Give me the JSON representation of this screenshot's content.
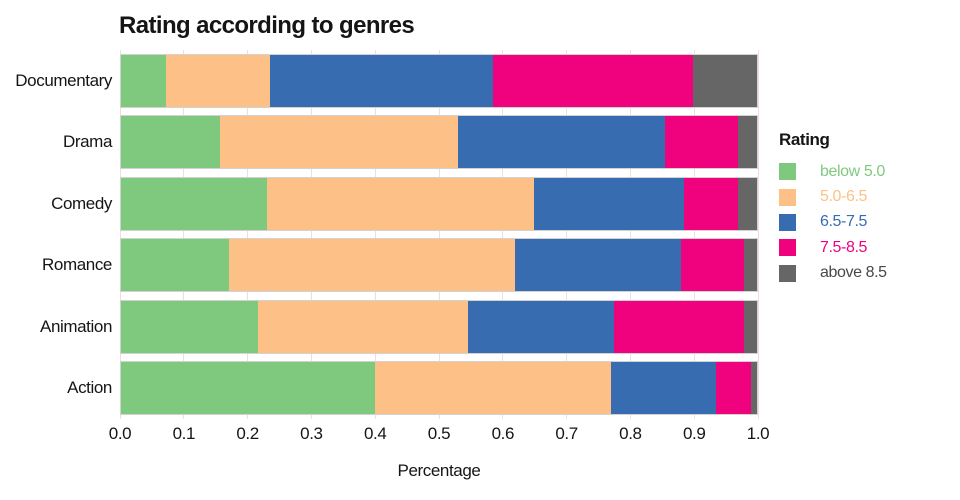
{
  "chart_data": {
    "type": "bar",
    "orientation": "horizontal",
    "stacked": true,
    "title": "Rating according to genres",
    "xlabel": "Percentage",
    "ylabel": "",
    "xlim": [
      0.0,
      1.0
    ],
    "xticks": [
      "0.0",
      "0.1",
      "0.2",
      "0.3",
      "0.4",
      "0.5",
      "0.6",
      "0.7",
      "0.8",
      "0.9",
      "1.0"
    ],
    "grid": "vertical-light-pink-at-0.1-steps",
    "categories": [
      "Documentary",
      "Drama",
      "Comedy",
      "Romance",
      "Animation",
      "Action"
    ],
    "series": [
      {
        "name": "below 5.0",
        "color": "#7fc97f",
        "text_color": "#7fc97f",
        "values": [
          0.07,
          0.155,
          0.23,
          0.17,
          0.215,
          0.4
        ]
      },
      {
        "name": "5.0-6.5",
        "color": "#fdc086",
        "text_color": "#fdc086",
        "values": [
          0.165,
          0.375,
          0.42,
          0.45,
          0.33,
          0.37
        ]
      },
      {
        "name": "6.5-7.5",
        "color": "#386cb0",
        "text_color": "#386cb0",
        "values": [
          0.35,
          0.325,
          0.235,
          0.26,
          0.23,
          0.165
        ]
      },
      {
        "name": "7.5-8.5",
        "color": "#f0027f",
        "text_color": "#f0027f",
        "values": [
          0.315,
          0.115,
          0.085,
          0.1,
          0.205,
          0.055
        ]
      },
      {
        "name": "above 8.5",
        "color": "#666666",
        "text_color": "#484848",
        "values": [
          0.1,
          0.03,
          0.03,
          0.02,
          0.02,
          0.01
        ]
      }
    ],
    "legend": {
      "title": "Rating",
      "position": "right"
    },
    "colors": {
      "background": "#ffffff",
      "gridline": "#f3dcdc",
      "bar_outline": "#d2d2d2",
      "text": "#151515"
    }
  }
}
